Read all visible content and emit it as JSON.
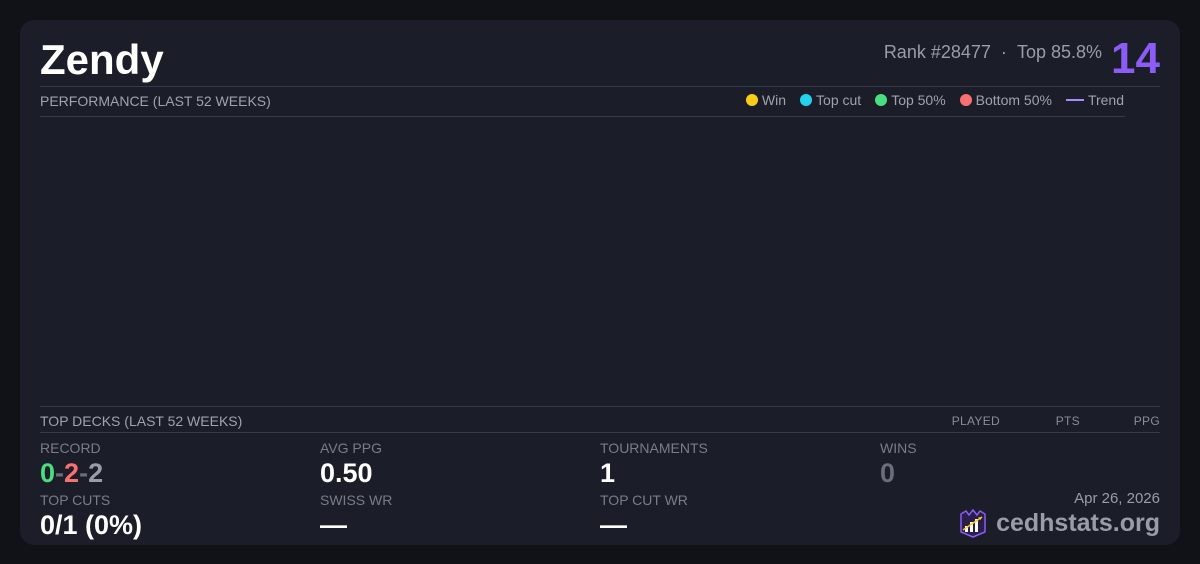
{
  "player": {
    "name": "Zendy",
    "rank": "Rank #28477",
    "sep": "·",
    "top": "Top 85.8%",
    "score": "14"
  },
  "performance": {
    "title": "PERFORMANCE (LAST 52 WEEKS)",
    "legend": [
      {
        "label": "Win",
        "color": "#facc15"
      },
      {
        "label": "Top cut",
        "color": "#22d3ee"
      },
      {
        "label": "Top 50%",
        "color": "#4ade80"
      },
      {
        "label": "Bottom 50%",
        "color": "#f87171"
      }
    ],
    "trend": {
      "label": "Trend",
      "color": "#a78bfa"
    }
  },
  "decks": {
    "title": "TOP DECKS (LAST 52 WEEKS)",
    "columns": [
      "PLAYED",
      "PTS",
      "PPG"
    ]
  },
  "stats": {
    "record_label": "RECORD",
    "record": {
      "wins": "0",
      "losses": "2",
      "draws": "2",
      "sep": "-"
    },
    "avg_ppg_label": "AVG PPG",
    "avg_ppg": "0.50",
    "tournaments_label": "TOURNAMENTS",
    "tournaments": "1",
    "wins_label": "WINS",
    "wins": "0",
    "top_cuts_label": "TOP CUTS",
    "top_cuts": "0/1 (0%)",
    "swiss_wr_label": "SWISS WR",
    "swiss_wr": "—",
    "top_cut_wr_label": "TOP CUT WR",
    "top_cut_wr": "—"
  },
  "footer": {
    "date": "Apr 26, 2026",
    "brand": "cedhstats.org"
  }
}
